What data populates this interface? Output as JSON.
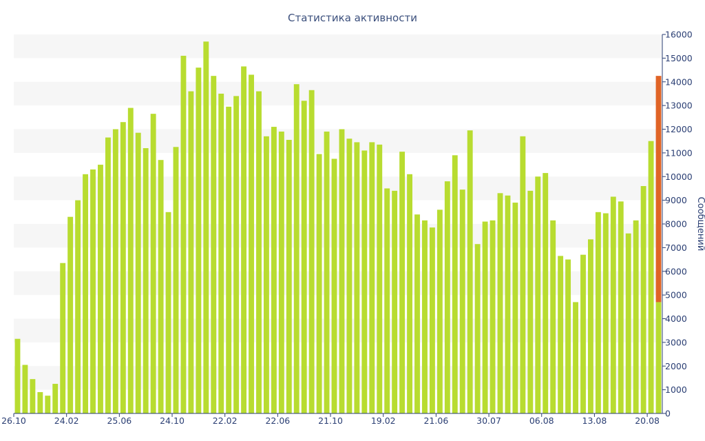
{
  "chart_data": {
    "type": "bar",
    "title": "Статистика активности",
    "ylabel": "Сообщений",
    "xlabel": "",
    "ylim": [
      0,
      16000
    ],
    "y_ticks": [
      0,
      1000,
      2000,
      3000,
      4000,
      5000,
      6000,
      7000,
      8000,
      9000,
      10000,
      11000,
      12000,
      13000,
      14000,
      15000,
      16000
    ],
    "y_axis_side": "right",
    "grid": "alternating horizontal bands",
    "x_tick_labels": [
      {
        "label": "26.10",
        "index": 0
      },
      {
        "label": "24.02",
        "index": 7
      },
      {
        "label": "25.06",
        "index": 14
      },
      {
        "label": "24.10",
        "index": 21
      },
      {
        "label": "22.02",
        "index": 28
      },
      {
        "label": "22.06",
        "index": 35
      },
      {
        "label": "21.10",
        "index": 42
      },
      {
        "label": "19.02",
        "index": 49
      },
      {
        "label": "21.06",
        "index": 56
      },
      {
        "label": "30.07",
        "index": 63
      },
      {
        "label": "06.08",
        "index": 70
      },
      {
        "label": "13.08",
        "index": 77
      },
      {
        "label": "20.08",
        "index": 84
      }
    ],
    "values": [
      3150,
      2050,
      1450,
      900,
      750,
      1250,
      6350,
      8300,
      9000,
      10100,
      10300,
      10500,
      11650,
      12000,
      12300,
      12900,
      11850,
      11200,
      12650,
      10700,
      8500,
      11250,
      15100,
      13600,
      14600,
      15700,
      14250,
      13500,
      12950,
      13400,
      14650,
      14300,
      13600,
      11700,
      12100,
      11900,
      11550,
      13900,
      13200,
      13650,
      10950,
      11900,
      10750,
      12000,
      11600,
      11450,
      11100,
      11450,
      11350,
      9500,
      9400,
      11050,
      10100,
      8400,
      8150,
      7850,
      8600,
      9800,
      10900,
      9450,
      11950,
      7150,
      8100,
      8150,
      9300,
      9200,
      8900,
      11700,
      9400,
      10000,
      10150,
      8150,
      6650,
      6500,
      4700,
      6700,
      7350,
      8500,
      8450,
      9150,
      8950,
      7600,
      8150,
      9600,
      11500,
      14250
    ],
    "series": [
      {
        "name": "",
        "color": "#b8dc30"
      },
      {
        "name": "",
        "color": "#e06426"
      }
    ],
    "last_bar_split": {
      "base_value": 4700,
      "top_value": 14250
    }
  }
}
